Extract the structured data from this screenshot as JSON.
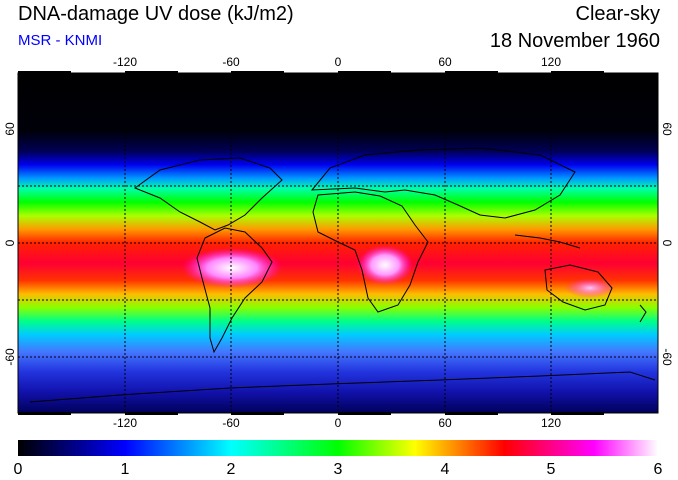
{
  "header": {
    "title": "DNA-damage UV dose (kJ/m2)",
    "subtitle": "MSR - KNMI",
    "sky": "Clear-sky",
    "date": "18 November 1960"
  },
  "colors": {
    "subtitle": "#0000ff",
    "scale": [
      "#000000",
      "#0000ff",
      "#00ffff",
      "#00ff00",
      "#ffff00",
      "#ff0000",
      "#ff00ff",
      "#ffffff"
    ]
  },
  "map": {
    "lon_ticks": [
      "-120",
      "-60",
      "0",
      "60",
      "120"
    ],
    "lat_ticks": [
      "60",
      "0",
      "-60"
    ]
  },
  "colorbar": {
    "min": 0,
    "max": 6,
    "labels": [
      "0",
      "1",
      "2",
      "3",
      "4",
      "5",
      "6"
    ]
  }
}
